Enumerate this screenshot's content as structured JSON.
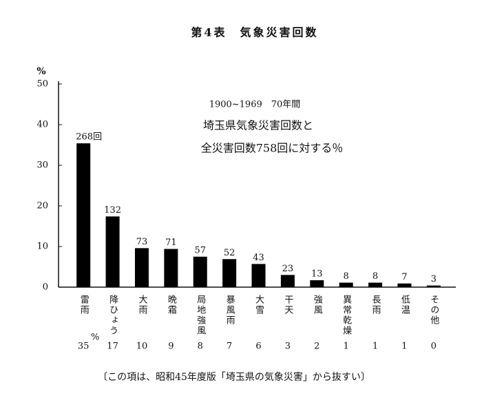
{
  "chart_data": {
    "type": "bar",
    "title": "第4表　気象災害回数",
    "y_label": "%",
    "annotations": [
      "1900~1969　70年間",
      "埼玉県気象災害回数と",
      "全災害回数758回に対する％"
    ],
    "categories": [
      "雷雨",
      "降ひょう",
      "大雨",
      "晩霜",
      "局地強風",
      "暴風雨",
      "大雪",
      "干天",
      "強風",
      "異常乾燥",
      "長雨",
      "低温",
      "その他"
    ],
    "values": [
      35.4,
      17.4,
      9.6,
      9.4,
      7.5,
      6.9,
      5.7,
      3.0,
      1.7,
      1.1,
      1.1,
      0.9,
      0.4
    ],
    "value_labels": [
      "35",
      "17",
      "10",
      "9",
      "8",
      "7",
      "6",
      "3",
      "2",
      "1",
      "1",
      "1",
      "0"
    ],
    "value_label_unit": "%",
    "count_labels": [
      "268回",
      "132",
      "73",
      "71",
      "57",
      "52",
      "43",
      "23",
      "13",
      "8",
      "8",
      "7",
      "3"
    ],
    "color": "#000000",
    "ylim": [
      0,
      50
    ],
    "yticks": [
      0,
      10,
      20,
      30,
      40,
      50
    ],
    "footnote": "〔この項は、昭和45年度版「埼玉県の気象災害」から抜すい〕"
  }
}
